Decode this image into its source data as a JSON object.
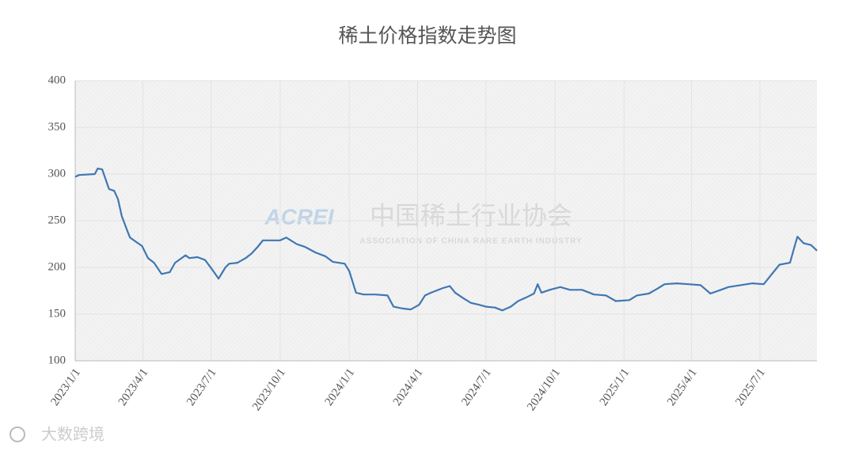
{
  "chart_data": {
    "type": "line",
    "title": "稀土价格指数走势图",
    "watermark": {
      "logo": "ACREI",
      "name": "中国稀土行业协会",
      "subtitle": "ASSOCIATION OF CHINA RARE EARTH INDUSTRY"
    },
    "footer": "大数跨境",
    "xlim": [
      "2023/1/1",
      "2025/9/15"
    ],
    "xticks": [
      "2023/1/1",
      "2023/4/1",
      "2023/7/1",
      "2023/10/1",
      "2024/1/1",
      "2024/4/1",
      "2024/7/1",
      "2024/10/1",
      "2025/1/1",
      "2025/4/1",
      "2025/7/1"
    ],
    "ylim": [
      100,
      400
    ],
    "yticks": [
      100,
      150,
      200,
      250,
      300,
      350,
      400
    ],
    "grid": true,
    "x": [
      "2023/1/1",
      "2023/1/6",
      "2023/1/27",
      "2023/1/31",
      "2023/2/6",
      "2023/2/15",
      "2023/2/22",
      "2023/2/27",
      "2023/3/4",
      "2023/3/12",
      "2023/3/15",
      "2023/3/22",
      "2023/3/31",
      "2023/4/8",
      "2023/4/16",
      "2023/4/26",
      "2023/5/7",
      "2023/5/14",
      "2023/5/28",
      "2023/6/2",
      "2023/6/13",
      "2023/6/23",
      "2023/7/4",
      "2023/7/11",
      "2023/7/20",
      "2023/7/25",
      "2023/8/5",
      "2023/8/16",
      "2023/8/24",
      "2023/9/1",
      "2023/9/8",
      "2023/9/17",
      "2023/10/1",
      "2023/10/9",
      "2023/10/23",
      "2023/11/3",
      "2023/11/17",
      "2023/11/30",
      "2023/12/10",
      "2023/12/26",
      "2024/1/1",
      "2024/1/10",
      "2024/1/20",
      "2024/2/5",
      "2024/2/21",
      "2024/2/29",
      "2024/3/12",
      "2024/3/23",
      "2024/4/3",
      "2024/4/11",
      "2024/4/19",
      "2024/5/5",
      "2024/5/14",
      "2024/5/21",
      "2024/6/1",
      "2024/6/11",
      "2024/6/22",
      "2024/7/1",
      "2024/7/13",
      "2024/7/23",
      "2024/8/3",
      "2024/8/13",
      "2024/8/24",
      "2024/9/3",
      "2024/9/8",
      "2024/9/13",
      "2024/9/24",
      "2024/10/8",
      "2024/10/21",
      "2024/11/6",
      "2024/11/22",
      "2024/12/8",
      "2024/12/21",
      "2025/1/8",
      "2025/1/18",
      "2025/2/3",
      "2025/2/14",
      "2025/2/24",
      "2025/3/12",
      "2025/3/28",
      "2025/4/13",
      "2025/4/26",
      "2025/5/10",
      "2025/5/20",
      "2025/6/5",
      "2025/6/21",
      "2025/7/6",
      "2025/7/16",
      "2025/7/27",
      "2025/8/10",
      "2025/8/17",
      "2025/8/20",
      "2025/8/28",
      "2025/9/7",
      "2025/9/15"
    ],
    "series": [
      {
        "color": "#3f77b3",
        "values": [
          297,
          299,
          300,
          306,
          305,
          284,
          282,
          273,
          255,
          238,
          232,
          228,
          223,
          210,
          205,
          193,
          195,
          205,
          213,
          210,
          211,
          208,
          196,
          188,
          200,
          204,
          205,
          210,
          215,
          222,
          229,
          229,
          229,
          232,
          225,
          222,
          216,
          212,
          206,
          204,
          196,
          173,
          171,
          171,
          170,
          158,
          156,
          155,
          160,
          170,
          173,
          178,
          180,
          173,
          167,
          162,
          160,
          158,
          157,
          154,
          158,
          164,
          168,
          172,
          182,
          173,
          176,
          179,
          176,
          176,
          171,
          170,
          164,
          165,
          170,
          172,
          177,
          182,
          183,
          182,
          181,
          172,
          176,
          179,
          181,
          183,
          182,
          192,
          203,
          205,
          225,
          233,
          226,
          224,
          218
        ]
      }
    ]
  }
}
